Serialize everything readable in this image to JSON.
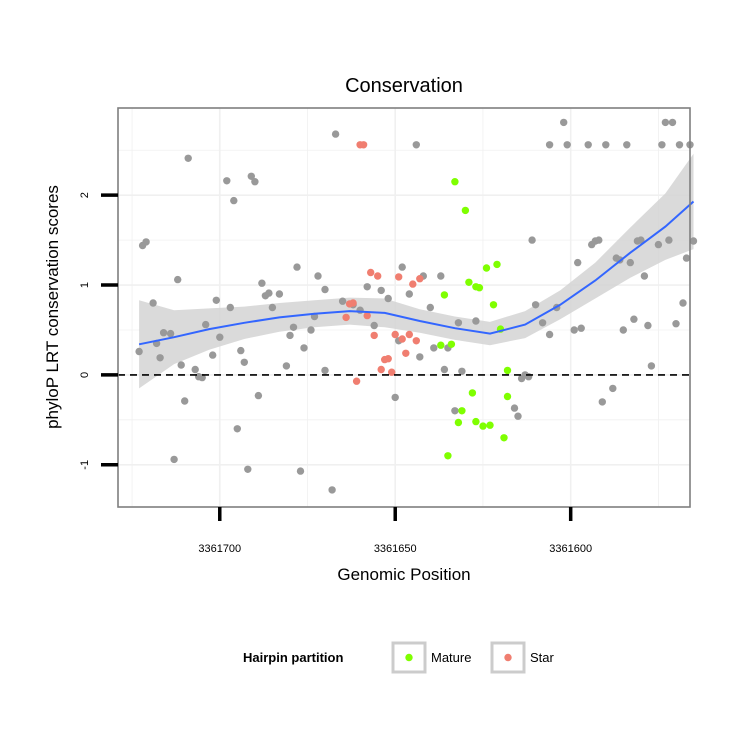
{
  "chart_data": {
    "type": "scatter",
    "title": "Conservation",
    "xlabel": "Genomic Position",
    "ylabel": "phyloP LRT conservation scores",
    "x_reversed": true,
    "xlim": [
      3361729,
      3361566
    ],
    "ylim": [
      -1.47,
      2.97
    ],
    "x_ticks": [
      3361700,
      3361650,
      3361600
    ],
    "y_ticks": [
      -1,
      0,
      1,
      2
    ],
    "reference_line": {
      "y": 0,
      "style": "dashed"
    },
    "grid": true,
    "legend": {
      "title": "Hairpin partition",
      "placement": "bottom",
      "entries": [
        {
          "label": "Mature",
          "color": "#7FFF00"
        },
        {
          "label": "Star",
          "color": "#F07E70"
        }
      ]
    },
    "colors": {
      "other": "#999999",
      "smooth": "#3366FF",
      "band": "#D3D3D3"
    },
    "points": {
      "other": [
        [
          3361723,
          0.26
        ],
        [
          3361722,
          1.44
        ],
        [
          3361721,
          1.48
        ],
        [
          3361719,
          0.8
        ],
        [
          3361718,
          0.35
        ],
        [
          3361717,
          0.19
        ],
        [
          3361716,
          0.47
        ],
        [
          3361714,
          0.46
        ],
        [
          3361713,
          -0.94
        ],
        [
          3361712,
          1.06
        ],
        [
          3361711,
          0.11
        ],
        [
          3361710,
          -0.29
        ],
        [
          3361709,
          2.41
        ],
        [
          3361707,
          0.06
        ],
        [
          3361706,
          -0.02
        ],
        [
          3361705,
          -0.03
        ],
        [
          3361704,
          0.56
        ],
        [
          3361702,
          0.22
        ],
        [
          3361701,
          0.83
        ],
        [
          3361700,
          0.42
        ],
        [
          3361698,
          2.16
        ],
        [
          3361697,
          0.75
        ],
        [
          3361696,
          1.94
        ],
        [
          3361695,
          -0.6
        ],
        [
          3361694,
          0.27
        ],
        [
          3361693,
          0.14
        ],
        [
          3361692,
          -1.05
        ],
        [
          3361691,
          2.21
        ],
        [
          3361690,
          2.15
        ],
        [
          3361689,
          -0.23
        ],
        [
          3361688,
          1.02
        ],
        [
          3361687,
          0.88
        ],
        [
          3361686,
          0.91
        ],
        [
          3361685,
          0.75
        ],
        [
          3361683,
          0.9
        ],
        [
          3361681,
          0.1
        ],
        [
          3361680,
          0.44
        ],
        [
          3361679,
          0.53
        ],
        [
          3361678,
          1.2
        ],
        [
          3361677,
          -1.07
        ],
        [
          3361676,
          0.3
        ],
        [
          3361674,
          0.5
        ],
        [
          3361673,
          0.65
        ],
        [
          3361672,
          1.1
        ],
        [
          3361670,
          0.05
        ],
        [
          3361670,
          0.95
        ],
        [
          3361668,
          -1.28
        ],
        [
          3361667,
          2.68
        ],
        [
          3361665,
          0.82
        ],
        [
          3361662,
          0.78
        ],
        [
          3361660,
          0.72
        ],
        [
          3361658,
          0.98
        ],
        [
          3361656,
          0.55
        ],
        [
          3361654,
          0.94
        ],
        [
          3361652,
          0.85
        ],
        [
          3361650,
          -0.25
        ],
        [
          3361649,
          0.38
        ],
        [
          3361648,
          1.2
        ],
        [
          3361646,
          0.9
        ],
        [
          3361644,
          2.56
        ],
        [
          3361643,
          0.2
        ],
        [
          3361642,
          1.1
        ],
        [
          3361640,
          0.75
        ],
        [
          3361639,
          0.3
        ],
        [
          3361637,
          1.1
        ],
        [
          3361636,
          0.06
        ],
        [
          3361635,
          0.3
        ],
        [
          3361633,
          -0.4
        ],
        [
          3361632,
          0.58
        ],
        [
          3361631,
          0.04
        ],
        [
          3361627,
          0.6
        ],
        [
          3361616,
          -0.37
        ],
        [
          3361615,
          -0.46
        ],
        [
          3361614,
          -0.04
        ],
        [
          3361613,
          0.0
        ],
        [
          3361612,
          -0.02
        ],
        [
          3361611,
          1.5
        ],
        [
          3361610,
          0.78
        ],
        [
          3361608,
          0.58
        ],
        [
          3361606,
          2.56
        ],
        [
          3361606,
          0.45
        ],
        [
          3361604,
          0.75
        ],
        [
          3361602,
          2.81
        ],
        [
          3361601,
          2.56
        ],
        [
          3361599,
          0.5
        ],
        [
          3361598,
          1.25
        ],
        [
          3361597,
          0.52
        ],
        [
          3361595,
          2.56
        ],
        [
          3361594,
          1.45
        ],
        [
          3361593,
          1.49
        ],
        [
          3361592,
          1.5
        ],
        [
          3361591,
          -0.3
        ],
        [
          3361590,
          2.56
        ],
        [
          3361588,
          -0.15
        ],
        [
          3361587,
          1.3
        ],
        [
          3361586,
          1.28
        ],
        [
          3361585,
          0.5
        ],
        [
          3361584,
          2.56
        ],
        [
          3361583,
          1.25
        ],
        [
          3361582,
          0.62
        ],
        [
          3361581,
          1.49
        ],
        [
          3361580,
          1.5
        ],
        [
          3361579,
          1.1
        ],
        [
          3361578,
          0.55
        ],
        [
          3361577,
          0.1
        ],
        [
          3361575,
          1.45
        ],
        [
          3361574,
          2.56
        ],
        [
          3361573,
          2.81
        ],
        [
          3361572,
          1.5
        ],
        [
          3361571,
          2.81
        ],
        [
          3361570,
          0.57
        ],
        [
          3361569,
          2.56
        ],
        [
          3361568,
          0.8
        ],
        [
          3361567,
          1.3
        ],
        [
          3361566,
          2.56
        ],
        [
          3361565,
          1.49
        ]
      ],
      "Star": [
        [
          3361664,
          0.64
        ],
        [
          3361663,
          0.79
        ],
        [
          3361662,
          0.8
        ],
        [
          3361661,
          -0.07
        ],
        [
          3361660,
          2.56
        ],
        [
          3361659,
          2.56
        ],
        [
          3361658,
          0.66
        ],
        [
          3361657,
          1.14
        ],
        [
          3361656,
          0.44
        ],
        [
          3361655,
          1.1
        ],
        [
          3361654,
          0.06
        ],
        [
          3361653,
          0.17
        ],
        [
          3361652,
          0.18
        ],
        [
          3361651,
          0.03
        ],
        [
          3361650,
          0.45
        ],
        [
          3361649,
          1.09
        ],
        [
          3361648,
          0.4
        ],
        [
          3361647,
          0.24
        ],
        [
          3361646,
          0.45
        ],
        [
          3361645,
          1.01
        ],
        [
          3361644,
          0.38
        ],
        [
          3361643,
          1.07
        ]
      ],
      "Mature": [
        [
          3361636,
          0.89
        ],
        [
          3361635,
          -0.9
        ],
        [
          3361634,
          0.34
        ],
        [
          3361633,
          2.15
        ],
        [
          3361632,
          -0.53
        ],
        [
          3361631,
          -0.4
        ],
        [
          3361630,
          1.83
        ],
        [
          3361629,
          1.03
        ],
        [
          3361628,
          -0.2
        ],
        [
          3361627,
          -0.52
        ],
        [
          3361627,
          0.98
        ],
        [
          3361626,
          0.97
        ],
        [
          3361625,
          -0.57
        ],
        [
          3361624,
          1.19
        ],
        [
          3361623,
          -0.56
        ],
        [
          3361622,
          0.78
        ],
        [
          3361621,
          1.23
        ],
        [
          3361620,
          0.51
        ],
        [
          3361619,
          -0.7
        ],
        [
          3361618,
          -0.24
        ],
        [
          3361618,
          0.05
        ],
        [
          3361637,
          0.33
        ]
      ]
    },
    "smooth": {
      "x": [
        3361723,
        3361713,
        3361703,
        3361693,
        3361683,
        3361673,
        3361663,
        3361653,
        3361643,
        3361633,
        3361623,
        3361613,
        3361603,
        3361593,
        3361583,
        3361573,
        3361565
      ],
      "y": [
        0.34,
        0.42,
        0.51,
        0.58,
        0.64,
        0.68,
        0.71,
        0.69,
        0.6,
        0.52,
        0.46,
        0.56,
        0.78,
        1.05,
        1.36,
        1.65,
        1.93
      ],
      "lo": [
        -0.15,
        0.12,
        0.28,
        0.4,
        0.48,
        0.53,
        0.56,
        0.53,
        0.47,
        0.39,
        0.33,
        0.41,
        0.62,
        0.85,
        1.08,
        1.28,
        1.4
      ],
      "hi": [
        0.83,
        0.72,
        0.74,
        0.76,
        0.8,
        0.83,
        0.86,
        0.85,
        0.73,
        0.65,
        0.59,
        0.71,
        0.94,
        1.25,
        1.64,
        2.02,
        2.46
      ]
    }
  }
}
